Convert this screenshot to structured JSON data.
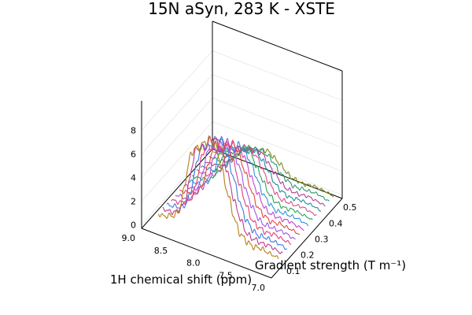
{
  "chart_data": {
    "type": "line",
    "projection": "3d",
    "title": "15N aSyn, 283 K - XSTE",
    "xlabel": "1H chemical shift (ppm)",
    "ylabel": "Gradient strength (T m⁻¹)",
    "zlabel": "",
    "x_ticks": [
      "9.0",
      "8.5",
      "8.0",
      "7.5",
      "7.0"
    ],
    "y_ticks": [
      "0.1",
      "0.2",
      "0.3",
      "0.4",
      "0.5"
    ],
    "z_ticks": [
      "0",
      "2",
      "4",
      "6",
      "8"
    ],
    "xlim": [
      9.0,
      7.0
    ],
    "ylim": [
      0.05,
      0.55
    ],
    "zlim": [
      -0.3,
      10.5
    ],
    "grid": true,
    "legend": "none",
    "series": [
      {
        "gradient": 0.1,
        "color": "#b5801a",
        "peak": 8.0,
        "noise": 0.55
      },
      {
        "gradient": 0.13,
        "color": "#c23c8c",
        "peak": 7.6,
        "noise": 0.5
      },
      {
        "gradient": 0.16,
        "color": "#3a7be0",
        "peak": 7.2,
        "noise": 0.48
      },
      {
        "gradient": 0.19,
        "color": "#e0407a",
        "peak": 6.7,
        "noise": 0.46
      },
      {
        "gradient": 0.22,
        "color": "#9b59e6",
        "peak": 6.1,
        "noise": 0.44
      },
      {
        "gradient": 0.25,
        "color": "#e04a3a",
        "peak": 5.6,
        "noise": 0.42
      },
      {
        "gradient": 0.28,
        "color": "#c93fd1",
        "peak": 5.1,
        "noise": 0.4
      },
      {
        "gradient": 0.31,
        "color": "#2f96d6",
        "peak": 4.6,
        "noise": 0.38
      },
      {
        "gradient": 0.34,
        "color": "#2ea35a",
        "peak": 4.1,
        "noise": 0.36
      },
      {
        "gradient": 0.37,
        "color": "#d94f8a",
        "peak": 3.6,
        "noise": 0.34
      },
      {
        "gradient": 0.4,
        "color": "#1f8fa0",
        "peak": 3.1,
        "noise": 0.33
      },
      {
        "gradient": 0.43,
        "color": "#b3409e",
        "peak": 2.6,
        "noise": 0.32
      },
      {
        "gradient": 0.46,
        "color": "#2a9a6a",
        "peak": 2.2,
        "noise": 0.31
      },
      {
        "gradient": 0.49,
        "color": "#7a8c1e",
        "peak": 1.8,
        "noise": 0.3
      }
    ]
  }
}
